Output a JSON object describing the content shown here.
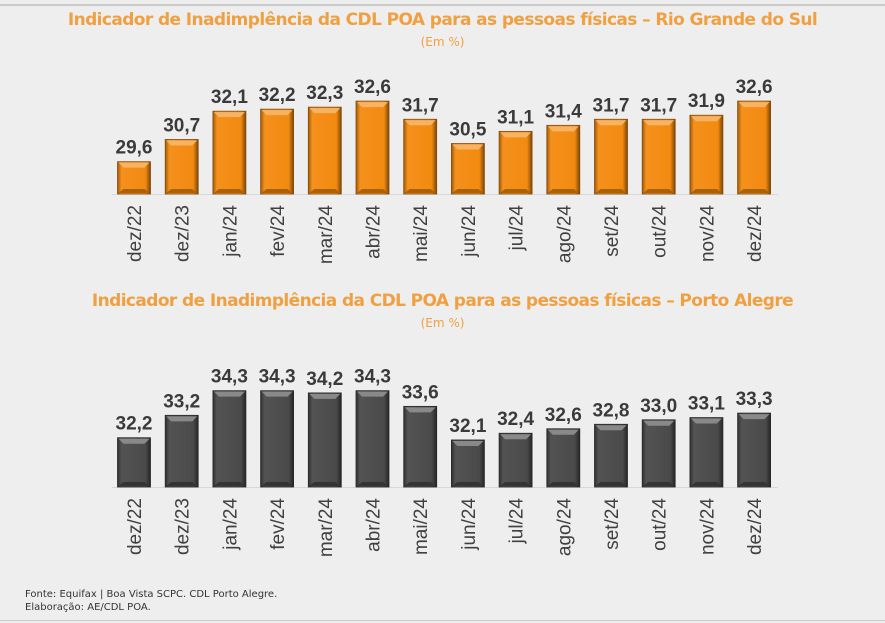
{
  "chart_data": [
    {
      "type": "bar",
      "title": "Indicador de Inadimplência da CDL POA para as pessoas físicas – Rio Grande do Sul",
      "subtitle": "(Em %)",
      "xlabel": "",
      "ylabel": "",
      "categories": [
        "dez/22",
        "dez/23",
        "jan/24",
        "fev/24",
        "mar/24",
        "abr/24",
        "mai/24",
        "jun/24",
        "jul/24",
        "ago/24",
        "set/24",
        "out/24",
        "nov/24",
        "dez/24"
      ],
      "values": [
        29.6,
        30.7,
        32.1,
        32.2,
        32.3,
        32.6,
        31.7,
        30.5,
        31.1,
        31.4,
        31.7,
        31.7,
        31.9,
        32.6
      ],
      "data_labels": [
        "29,6",
        "30,7",
        "32,1",
        "32,2",
        "32,3",
        "32,6",
        "31,7",
        "30,5",
        "31,1",
        "31,4",
        "31,7",
        "31,7",
        "31,9",
        "32,6"
      ],
      "ylim": [
        28.0,
        33.0
      ],
      "grid": false,
      "legend": "none",
      "bar_color": "#f38a10"
    },
    {
      "type": "bar",
      "title": "Indicador de Inadimplência da CDL POA para as pessoas físicas – Porto Alegre",
      "subtitle": "(Em %)",
      "xlabel": "",
      "ylabel": "",
      "categories": [
        "dez/22",
        "dez/23",
        "jan/24",
        "fev/24",
        "mar/24",
        "abr/24",
        "mai/24",
        "jun/24",
        "jul/24",
        "ago/24",
        "set/24",
        "out/24",
        "nov/24",
        "dez/24"
      ],
      "values": [
        32.2,
        33.2,
        34.3,
        34.3,
        34.2,
        34.3,
        33.6,
        32.1,
        32.4,
        32.6,
        32.8,
        33.0,
        33.1,
        33.3
      ],
      "data_labels": [
        "32,2",
        "33,2",
        "34,3",
        "34,3",
        "34,2",
        "34,3",
        "33,6",
        "32,1",
        "32,4",
        "32,6",
        "32,8",
        "33,0",
        "33,1",
        "33,3"
      ],
      "ylim": [
        30.0,
        35.0
      ],
      "grid": false,
      "legend": "none",
      "bar_color": "#4a4a4a"
    }
  ],
  "footer": {
    "source": "Fonte: Equifax | Boa Vista SCPC. CDL Porto Alegre.",
    "elaboration": "Elaboração: AE/CDL POA."
  }
}
